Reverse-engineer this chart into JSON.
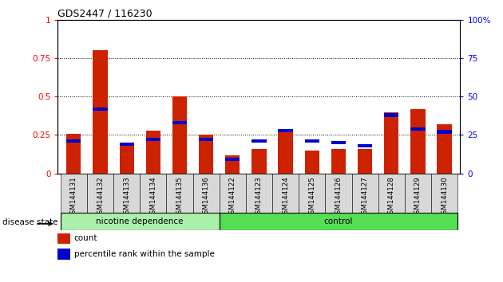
{
  "title": "GDS2447 / 116230",
  "samples": [
    "GSM144131",
    "GSM144132",
    "GSM144133",
    "GSM144134",
    "GSM144135",
    "GSM144136",
    "GSM144122",
    "GSM144123",
    "GSM144124",
    "GSM144125",
    "GSM144126",
    "GSM144127",
    "GSM144128",
    "GSM144129",
    "GSM144130"
  ],
  "count_values": [
    0.26,
    0.8,
    0.2,
    0.28,
    0.5,
    0.25,
    0.12,
    0.16,
    0.27,
    0.15,
    0.16,
    0.16,
    0.4,
    0.42,
    0.32
  ],
  "percentile_values": [
    0.21,
    0.42,
    0.19,
    0.22,
    0.33,
    0.22,
    0.09,
    0.21,
    0.28,
    0.21,
    0.2,
    0.18,
    0.38,
    0.29,
    0.27
  ],
  "group_labels": [
    "nicotine dependence",
    "control"
  ],
  "group_sizes": [
    6,
    9
  ],
  "nic_color": "#aaf0aa",
  "ctrl_color": "#55dd55",
  "tick_box_color": "#d8d8d8",
  "bar_color": "#cc2200",
  "percentile_color": "#0000cc",
  "bar_width": 0.55,
  "ylim": [
    0,
    1.0
  ],
  "yticks": [
    0,
    0.25,
    0.5,
    0.75,
    1.0
  ],
  "ytick_labels": [
    "0",
    "0.25",
    "0.5",
    "0.75",
    "1"
  ],
  "right_yticks": [
    0,
    25,
    50,
    75,
    100
  ],
  "right_ytick_labels": [
    "0",
    "25",
    "50",
    "75",
    "100%"
  ],
  "legend_count_label": "count",
  "legend_percentile_label": "percentile rank within the sample",
  "disease_state_label": "disease state",
  "background_color": "#ffffff"
}
